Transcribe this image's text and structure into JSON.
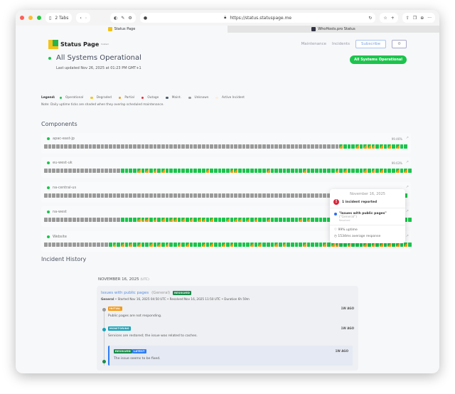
{
  "browser": {
    "tabs_count": "2 Tabs",
    "url": "https://status.statuspage.me",
    "tabs": [
      {
        "label": "Status Page",
        "active": true
      },
      {
        "label": "WhoHosts.pro Status",
        "active": false
      }
    ]
  },
  "header": {
    "logo_text": "Status Page",
    "logo_sup": "hosted",
    "nav": [
      "Maintenance",
      "Incidents"
    ],
    "subscribe": "Subscribe",
    "settings_icon": "gear-icon"
  },
  "status": {
    "title": "All Systems Operational",
    "last_updated": "Last updated Nov 26, 2025 at 01:23 PM GMT+1",
    "badge": "All Systems Operational"
  },
  "legend": {
    "label": "Legend:",
    "items": [
      {
        "label": "Operational",
        "color": "#1bc44c"
      },
      {
        "label": "Degraded",
        "color": "#f5c518"
      },
      {
        "label": "Partial",
        "color": "#f59a16"
      },
      {
        "label": "Outage",
        "color": "#e02f3a"
      },
      {
        "label": "Maint.",
        "color": "#4a5a6a"
      },
      {
        "label": "Unknown",
        "color": "#9a9a9a"
      },
      {
        "label": "Active Incident",
        "color": "#faeedd"
      }
    ],
    "note": "Note: Daily uptime ticks are shaded when they overlap scheduled maintenance."
  },
  "components_title": "Components",
  "components": [
    {
      "name": "apac-east-jp",
      "uptime": "99.46%",
      "ticks": "uuuuuuuuuuuuuuuuuuuuuuuuuuuuuuuuuuuuuuuuuuuuuuuuuuuuuuuuuuuuuuuuuuuuuuuuupgggpgpppgpgpgpgg"
    },
    {
      "name": "eu-west-uk",
      "uptime": "99.63%",
      "ticks": "uuuuuuuuuuuuuuuuuuuggggpgpgpgpggggggggggpgggggppgggggggpggggggggpgggggggpgpggggpgpgpgggpgpg"
    },
    {
      "name": "na-central-us",
      "uptime": "",
      "ticks": "uuuuuuuuuuuuuuuuuuuuuuuuuuuuuuuuuuuuuuuuuuuuuuuuuuuuuuuuuuuuuuuuuuuuuuuuuuuuuuuuuuuuuuuuug"
    },
    {
      "name": "na-west",
      "uptime": "",
      "ticks": "uuuuuuuuuuuuuuuuuuuggggpppgpgpgppgpgpgppgpgggpgppgpgpggpgggggggpgpgggggggpgpgpggppggpgpgpgg"
    },
    {
      "name": "Website",
      "uptime": "",
      "ticks": "uuuuuuuuuuuuuuuugpgpgpgpggpgpgpggpgpgggpgpggpgpggggpgpgggpgpggggpggggpgppggpgggpgpgpgpgpgpg"
    }
  ],
  "tooltip": {
    "date": "November 16, 2025",
    "incidents": "1 incident reported",
    "incident_title": "\"Issues with public pages\"",
    "incident_group": "(\"General\")",
    "incident_status": "Resolved",
    "uptime": "99% uptime",
    "response": "1534ms average response"
  },
  "history": {
    "title": "Incident History",
    "date": "NOVEMBER 16, 2025",
    "tz": "(UTC)",
    "incident": {
      "title": "Issues with public pages",
      "group": "(General)",
      "badge": "RESOLVED",
      "meta_group": "General",
      "meta": " • Started Nov 16, 2025 04:50 UTC • Resolved Nov 16, 2025 11:50 UTC • Duration 6h 59m",
      "updates": [
        {
          "tag": "INITIAL",
          "tag_color": "#f59a16",
          "dot": "#999",
          "ago": "1W AGO",
          "message": "Public pages are not responding."
        },
        {
          "tag": "MONITORING",
          "tag_color": "#17a2b8",
          "dot": "#17a2b8",
          "ago": "1W AGO",
          "message": "Services are restored; the issue was related to caches."
        },
        {
          "tag": "RESOLVED",
          "tag2": "LATEST",
          "tag_color": "#1a8a4a",
          "dot": "#1a8a4a",
          "ago": "1W AGO",
          "message": "The issue seems to be fixed."
        }
      ]
    }
  }
}
